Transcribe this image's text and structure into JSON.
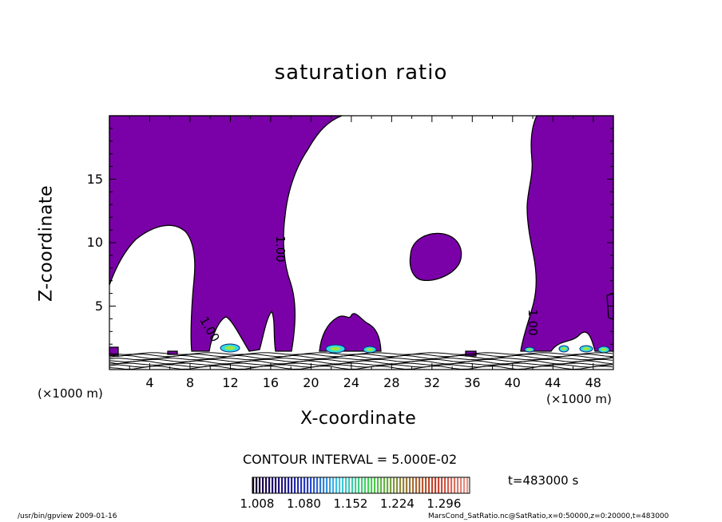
{
  "chart_data": {
    "type": "contour",
    "title": "saturation ratio",
    "xlabel": "X-coordinate",
    "ylabel": "Z-coordinate",
    "x_unit": "(×1000 m)",
    "y_unit": "(×1000 m)",
    "xlim": [
      0,
      50
    ],
    "ylim": [
      0,
      20
    ],
    "x_ticks": [
      4,
      8,
      12,
      16,
      20,
      24,
      28,
      32,
      36,
      40,
      44,
      48
    ],
    "y_ticks": [
      5,
      10,
      15
    ],
    "contour_interval_text": "CONTOUR INTERVAL = 5.000E-02",
    "contour_labels": [
      "1.00",
      "1.00",
      "1.00"
    ],
    "fill_color": "#7a00a8",
    "background_color": "#ffffff",
    "colorbar": {
      "ticks": [
        "1.008",
        "1.080",
        "1.152",
        "1.224",
        "1.296"
      ],
      "range": [
        1.008,
        1.296
      ]
    },
    "time_label": "t=483000  s"
  },
  "footer": {
    "left": "/usr/bin/gpview   2009-01-16",
    "right": "MarsCond_SatRatio.nc@SatRatio,x=0:50000,z=0:20000,t=483000"
  }
}
